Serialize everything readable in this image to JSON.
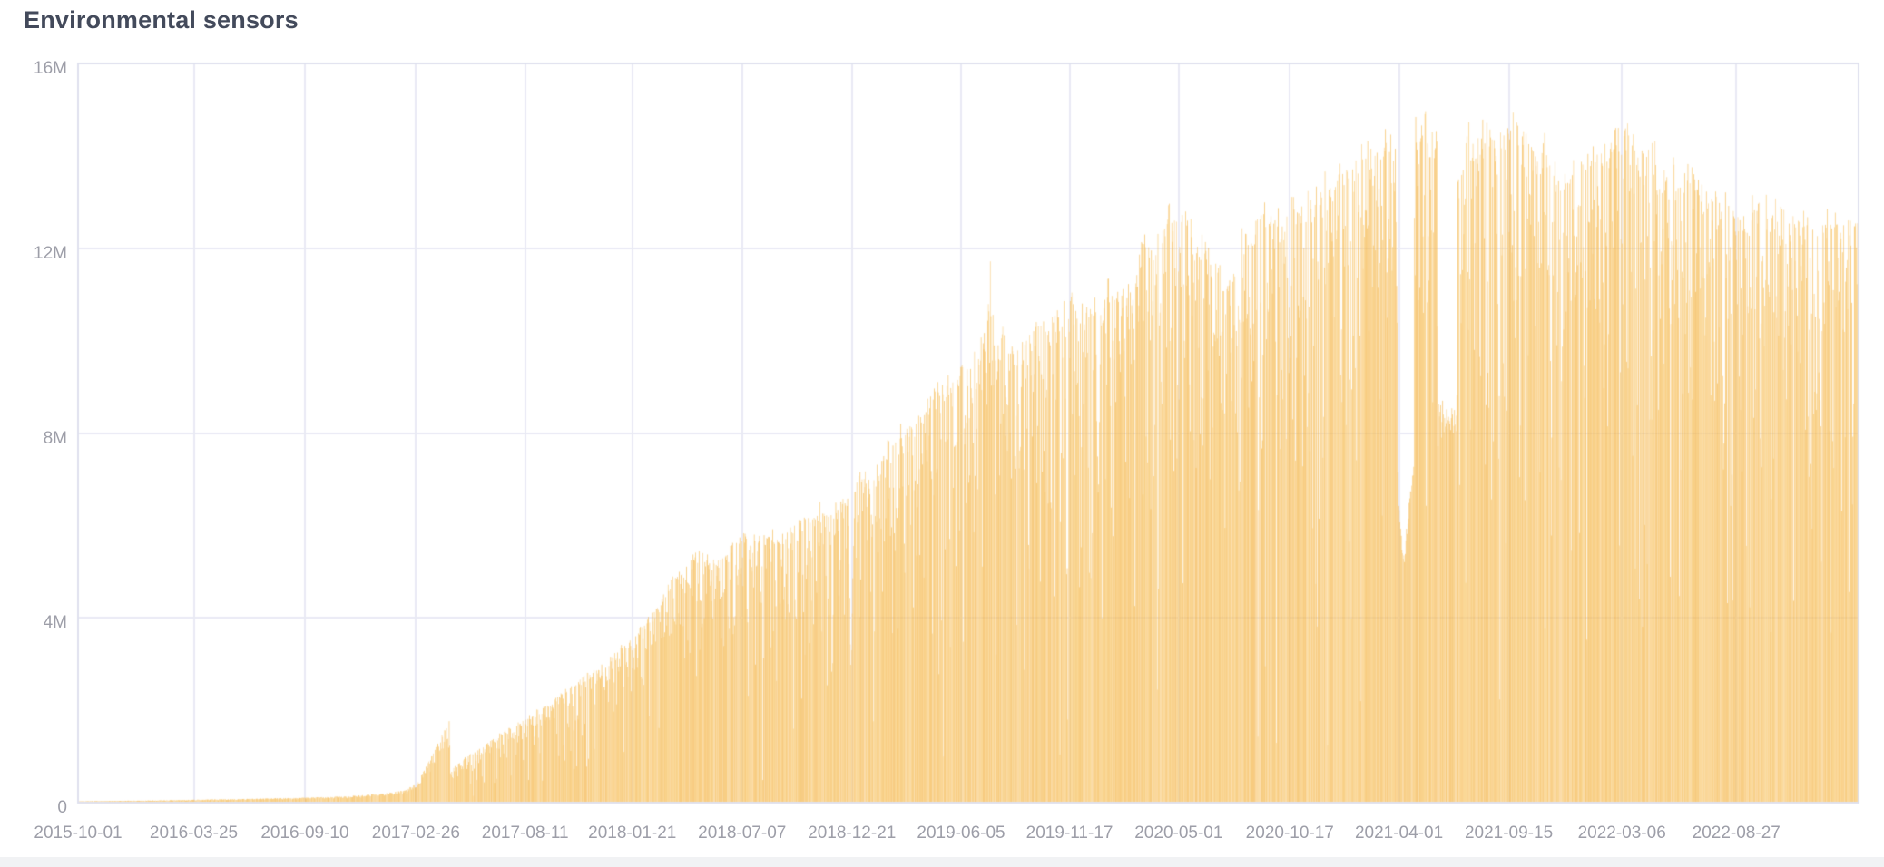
{
  "panel": {
    "title": "Environmental sensors"
  },
  "colors": {
    "background": "#ffffff",
    "title_text": "#434a5b",
    "axis_text": "#9d9ea8",
    "grid": "#e9eaf4",
    "plot_border": "#dfe1ee",
    "page_strip": "#f1f2f4",
    "bar_palette": [
      "#f6bc55",
      "#f9cd82",
      "#f4b446",
      "#f8c668"
    ],
    "bar_alpha": 0.88
  },
  "chart_data": {
    "type": "bar",
    "title": "Environmental sensors",
    "series_name": "Environmental sensors",
    "xlabel": "",
    "ylabel": "",
    "unit_suffix": "M",
    "unit_scale": 1000000,
    "ylim": [
      0,
      16000000
    ],
    "grid": true,
    "legend": false,
    "bar_interval": "1 day",
    "y_ticks": [
      {
        "label": "16M",
        "value": 16
      },
      {
        "label": "12M",
        "value": 12
      },
      {
        "label": "8M",
        "value": 8
      },
      {
        "label": "4M",
        "value": 4
      },
      {
        "label": "0",
        "value": 0
      }
    ],
    "x_ticks": [
      "2015-10-01",
      "2016-03-25",
      "2016-09-10",
      "2017-02-26",
      "2017-08-11",
      "2018-01-21",
      "2018-07-07",
      "2018-12-21",
      "2019-06-05",
      "2019-11-17",
      "2020-05-01",
      "2020-10-17",
      "2021-04-01",
      "2021-09-15",
      "2022-03-06",
      "2022-08-27"
    ],
    "x_range": [
      "2015-10-01",
      "2023-03-01"
    ],
    "envelope_points_millions": [
      [
        "2015-10-01",
        0.03
      ],
      [
        "2016-02-01",
        0.05
      ],
      [
        "2016-06-01",
        0.08
      ],
      [
        "2016-09-10",
        0.11
      ],
      [
        "2016-11-15",
        0.14
      ],
      [
        "2017-01-05",
        0.2
      ],
      [
        "2017-02-10",
        0.28
      ],
      [
        "2017-03-01",
        0.45
      ],
      [
        "2017-04-17",
        1.8
      ],
      [
        "2017-04-19",
        0.72
      ],
      [
        "2017-05-20",
        1.05
      ],
      [
        "2017-07-01",
        1.5
      ],
      [
        "2017-08-11",
        1.85
      ],
      [
        "2017-10-01",
        2.35
      ],
      [
        "2017-11-15",
        2.8
      ],
      [
        "2018-01-12",
        3.5
      ],
      [
        "2018-02-20",
        4.2
      ],
      [
        "2018-04-05",
        5.05
      ],
      [
        "2018-05-01",
        5.5
      ],
      [
        "2018-05-28",
        5.3
      ],
      [
        "2018-07-07",
        5.7
      ],
      [
        "2018-09-01",
        6.0
      ],
      [
        "2018-10-20",
        6.3
      ],
      [
        "2018-12-15",
        6.7
      ],
      [
        "2019-01-15",
        7.3
      ],
      [
        "2019-02-20",
        7.9
      ],
      [
        "2019-04-01",
        8.5
      ],
      [
        "2019-05-10",
        9.2
      ],
      [
        "2019-06-20",
        9.7
      ],
      [
        "2019-07-14",
        10.4
      ],
      [
        "2019-07-19",
        12.0
      ],
      [
        "2019-07-25",
        10.4
      ],
      [
        "2019-09-01",
        10.0
      ],
      [
        "2019-10-10",
        10.5
      ],
      [
        "2019-11-20",
        11.0
      ],
      [
        "2019-12-20",
        10.9
      ],
      [
        "2020-01-20",
        11.2
      ],
      [
        "2020-02-20",
        11.0
      ],
      [
        "2020-03-05",
        12.4
      ],
      [
        "2020-03-25",
        11.9
      ],
      [
        "2020-04-16",
        13.2
      ],
      [
        "2020-05-15",
        13.0
      ],
      [
        "2020-06-15",
        12.0
      ],
      [
        "2020-07-10",
        11.4
      ],
      [
        "2020-08-10",
        12.6
      ],
      [
        "2020-09-10",
        12.9
      ],
      [
        "2020-10-17",
        12.9
      ],
      [
        "2020-11-20",
        13.4
      ],
      [
        "2021-01-01",
        13.8
      ],
      [
        "2021-02-15",
        14.3
      ],
      [
        "2021-03-15",
        14.5
      ],
      [
        "2021-03-28",
        13.8
      ],
      [
        "2021-04-25",
        14.6
      ],
      [
        "2021-05-15",
        15.4
      ],
      [
        "2021-05-29",
        14.9
      ],
      [
        "2021-06-29",
        13.9
      ],
      [
        "2021-07-15",
        14.9
      ],
      [
        "2021-09-15",
        14.6
      ],
      [
        "2021-11-01",
        14.5
      ],
      [
        "2021-12-10",
        13.9
      ],
      [
        "2022-01-10",
        14.3
      ],
      [
        "2022-03-01",
        14.6
      ],
      [
        "2022-04-15",
        14.2
      ],
      [
        "2022-05-20",
        13.6
      ],
      [
        "2022-06-15",
        13.9
      ],
      [
        "2022-07-20",
        13.2
      ],
      [
        "2022-08-27",
        12.7
      ],
      [
        "2022-10-01",
        13.0
      ],
      [
        "2022-11-15",
        12.8
      ],
      [
        "2023-01-01",
        12.6
      ],
      [
        "2023-03-01",
        12.9
      ]
    ],
    "outage_events_millions": [
      {
        "start": "2018-12-16",
        "days": [
          5.2,
          4.4,
          3.4,
          2.9,
          3.3,
          4.1,
          5.0,
          5.6,
          6.1
        ]
      },
      {
        "start": "2019-12-27",
        "days": [
          9.6,
          8.4,
          7.3,
          6.7,
          7.0,
          8.0,
          9.3,
          10.5
        ]
      },
      {
        "start": "2021-03-29",
        "days": [
          10.5,
          7.0,
          6.6,
          6.3,
          6.1,
          5.9,
          5.7,
          5.5,
          5.4,
          5.2,
          5.2,
          5.3,
          5.5,
          5.6,
          5.8,
          5.9,
          6.1,
          6.2,
          6.4,
          6.5,
          6.6,
          6.7,
          6.8,
          6.9,
          7.0,
          7.2
        ],
        "solid": true
      },
      {
        "start": "2021-05-31",
        "days": [
          8.4,
          8.2,
          8.3,
          8.5,
          8.1,
          8.3,
          8.6,
          8.2,
          8.1,
          8.4,
          8.3,
          8.2,
          8.6,
          8.3,
          8.1,
          8.2,
          8.4,
          8.3,
          8.0,
          8.2,
          8.5,
          8.3,
          8.2,
          8.1,
          8.3,
          8.4,
          8.2,
          8.3,
          8.6
        ],
        "solid": true
      },
      {
        "start": "2021-12-23",
        "days": [
          12.0,
          11.2,
          10.8,
          11.5,
          12.3,
          11.8,
          12.6,
          13.0
        ]
      },
      {
        "start": "2022-10-01",
        "days": [
          9.8,
          7.9,
          10.4
        ]
      }
    ],
    "noise": {
      "seed": 1337,
      "top_jitter": [
        0.975,
        1.015
      ],
      "slow_wobble_amp": 0.05,
      "slow_wobble_period_days": 12,
      "saturday_factor": [
        0.92,
        0.98
      ],
      "sunday_factor": [
        0.8,
        0.92
      ],
      "dip_tiers": [
        {
          "p": 0.55,
          "min": 0.96,
          "max": 1.0
        },
        {
          "p": 0.23,
          "min": 0.82,
          "max": 0.96
        },
        {
          "p": 0.14,
          "min": 0.6,
          "max": 0.82
        },
        {
          "p": 0.06,
          "min": 0.35,
          "max": 0.6
        },
        {
          "p": 0.02,
          "min": 0.08,
          "max": 0.35
        }
      ],
      "solid_before": "2017-05-01",
      "solid_floor": 0.8,
      "event_jitter": [
        0.97,
        1.03
      ],
      "max_value_millions": 15.8
    }
  }
}
